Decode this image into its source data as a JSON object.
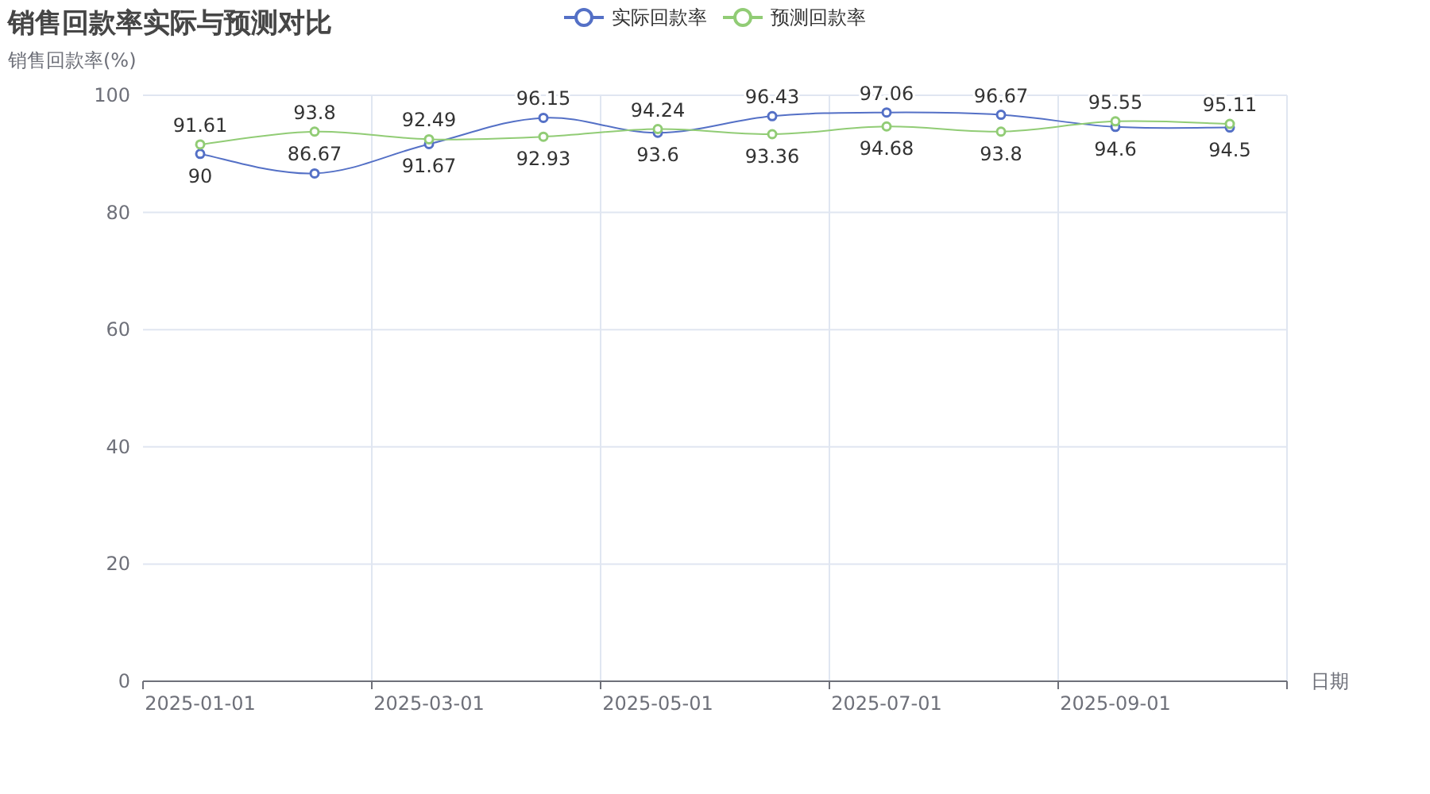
{
  "chart_data": {
    "type": "line",
    "title": "销售回款率实际与预测对比",
    "ylabel": "销售回款率(%)",
    "xlabel": "日期",
    "categories": [
      "2025-01-01",
      null,
      "2025-03-01",
      null,
      "2025-05-01",
      null,
      "2025-07-01",
      null,
      "2025-09-01",
      null
    ],
    "series": [
      {
        "name": "实际回款率",
        "color": "#5470c6",
        "values": [
          90,
          86.67,
          91.67,
          96.15,
          93.6,
          96.43,
          97.06,
          96.67,
          94.6,
          94.5
        ]
      },
      {
        "name": "预测回款率",
        "color": "#91cc75",
        "values": [
          91.61,
          93.8,
          92.49,
          92.93,
          94.24,
          93.36,
          94.68,
          93.8,
          95.55,
          95.11
        ]
      }
    ],
    "ylim": [
      0,
      100
    ],
    "yticks": [
      0,
      20,
      40,
      60,
      80,
      100
    ],
    "grid": true,
    "legend": "top",
    "marker": "circle",
    "line_style": "solid",
    "data_labels": true
  }
}
